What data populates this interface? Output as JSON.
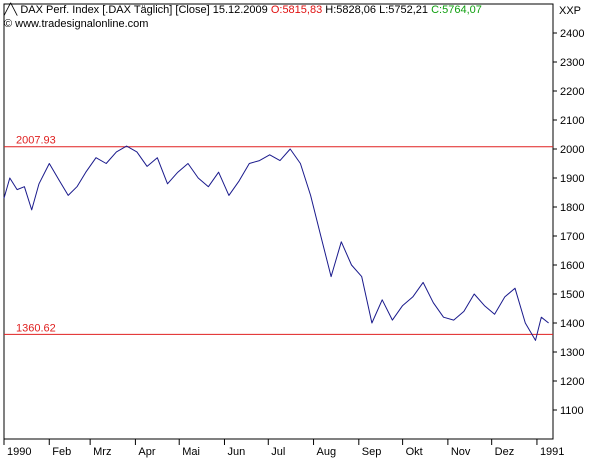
{
  "header": {
    "instrument": "DAX Perf. Index [.DAX Täglich] [Close]",
    "date": "15.12.2009",
    "open": "O:5815,83",
    "high": "H:5828,06",
    "low": "L:5752,21",
    "close": "C:5764,07",
    "watermark": "© www.tradesignalonline.com"
  },
  "colors": {
    "series": "#1a1a8c",
    "hline": "#e02020",
    "open": "#e01010",
    "close": "#10a010"
  },
  "chart_data": {
    "type": "line",
    "unit_label": "XXP",
    "ylim": [
      1000,
      2500
    ],
    "yticks": [
      1100,
      1200,
      1300,
      1400,
      1500,
      1600,
      1700,
      1800,
      1900,
      2000,
      2100,
      2200,
      2300,
      2400
    ],
    "xlim": [
      "1990-01-01",
      "1991-01-12"
    ],
    "xticks": [
      {
        "label": "1990",
        "date": "1990-01-01"
      },
      {
        "label": "Feb",
        "date": "1990-02-01"
      },
      {
        "label": "Mrz",
        "date": "1990-03-01"
      },
      {
        "label": "Apr",
        "date": "1990-04-01"
      },
      {
        "label": "Mai",
        "date": "1990-05-01"
      },
      {
        "label": "Jun",
        "date": "1990-06-01"
      },
      {
        "label": "Jul",
        "date": "1990-07-01"
      },
      {
        "label": "Aug",
        "date": "1990-08-01"
      },
      {
        "label": "Sep",
        "date": "1990-09-01"
      },
      {
        "label": "Okt",
        "date": "1990-10-01"
      },
      {
        "label": "Nov",
        "date": "1990-11-01"
      },
      {
        "label": "Dez",
        "date": "1990-12-01"
      },
      {
        "label": "1991",
        "date": "1991-01-01"
      }
    ],
    "hlines": [
      {
        "label": "2007.93",
        "value": 2007.93
      },
      {
        "label": "1360.62",
        "value": 1360.62
      }
    ],
    "series": [
      {
        "x": [
          "1990-01-01",
          "1990-01-05",
          "1990-01-10",
          "1990-01-15",
          "1990-01-20",
          "1990-01-25",
          "1990-02-01",
          "1990-02-08",
          "1990-02-14",
          "1990-02-20",
          "1990-02-26",
          "1990-03-05",
          "1990-03-12",
          "1990-03-19",
          "1990-03-26",
          "1990-04-02",
          "1990-04-09",
          "1990-04-16",
          "1990-04-23",
          "1990-04-30",
          "1990-05-07",
          "1990-05-14",
          "1990-05-21",
          "1990-05-28",
          "1990-06-04",
          "1990-06-11",
          "1990-06-18",
          "1990-06-25",
          "1990-07-02",
          "1990-07-09",
          "1990-07-16",
          "1990-07-23",
          "1990-07-30",
          "1990-08-06",
          "1990-08-13",
          "1990-08-20",
          "1990-08-27",
          "1990-09-03",
          "1990-09-10",
          "1990-09-17",
          "1990-09-24",
          "1990-10-01",
          "1990-10-08",
          "1990-10-15",
          "1990-10-22",
          "1990-10-29",
          "1990-11-05",
          "1990-11-12",
          "1990-11-19",
          "1990-11-26",
          "1990-12-03",
          "1990-12-10",
          "1990-12-17",
          "1990-12-24",
          "1990-12-31",
          "1991-01-04",
          "1991-01-09"
        ],
        "y": [
          1830,
          1900,
          1860,
          1870,
          1790,
          1880,
          1950,
          1890,
          1840,
          1870,
          1920,
          1970,
          1950,
          1990,
          2010,
          1990,
          1940,
          1970,
          1880,
          1920,
          1950,
          1900,
          1870,
          1920,
          1840,
          1890,
          1950,
          1960,
          1980,
          1960,
          2000,
          1950,
          1840,
          1700,
          1560,
          1680,
          1600,
          1560,
          1400,
          1480,
          1410,
          1460,
          1490,
          1540,
          1470,
          1420,
          1410,
          1440,
          1500,
          1460,
          1430,
          1490,
          1520,
          1400,
          1340,
          1420,
          1400
        ]
      }
    ]
  }
}
